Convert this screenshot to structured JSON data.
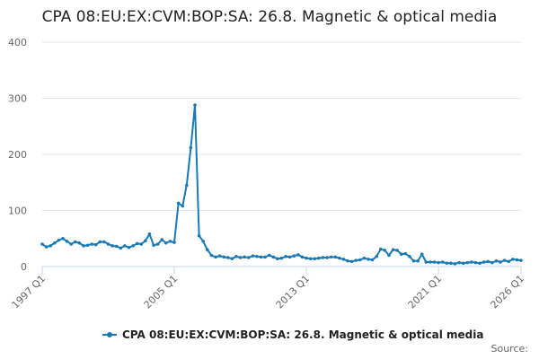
{
  "chart_data": {
    "type": "line",
    "title": "CPA 08:EU:EX:CVM:BOP:SA: 26.8. Magnetic & optical media",
    "categories": [
      "1997 Q1",
      null,
      null,
      null,
      null,
      null,
      null,
      null,
      null,
      null,
      null,
      null,
      null,
      null,
      null,
      null,
      null,
      null,
      null,
      null,
      null,
      null,
      null,
      null,
      null,
      null,
      null,
      null,
      null,
      null,
      null,
      null,
      "2005 Q1",
      null,
      null,
      null,
      null,
      null,
      null,
      null,
      null,
      null,
      null,
      null,
      null,
      null,
      null,
      null,
      null,
      null,
      null,
      null,
      null,
      null,
      null,
      null,
      null,
      null,
      null,
      null,
      null,
      null,
      null,
      null,
      "2013 Q1",
      null,
      null,
      null,
      null,
      null,
      null,
      null,
      null,
      null,
      null,
      null,
      null,
      null,
      null,
      null,
      null,
      null,
      null,
      null,
      null,
      null,
      null,
      null,
      null,
      null,
      null,
      null,
      null,
      null,
      null,
      null,
      "2021 Q1",
      null,
      null,
      null,
      null,
      null,
      null,
      null,
      null,
      null,
      null,
      null,
      null,
      null,
      null,
      null,
      null,
      null,
      null,
      null,
      "2026 Q1"
    ],
    "series": [
      {
        "name": "CPA 08:EU:EX:CVM:BOP:SA: 26.8. Magnetic & optical media",
        "color": "#1a7ab5",
        "values": [
          40,
          35,
          37,
          42,
          47,
          50,
          45,
          40,
          44,
          42,
          37,
          38,
          40,
          39,
          44,
          44,
          40,
          37,
          36,
          33,
          37,
          34,
          37,
          41,
          40,
          46,
          58,
          38,
          40,
          48,
          42,
          45,
          43,
          113,
          108,
          145,
          212,
          288,
          55,
          45,
          30,
          20,
          17,
          19,
          17,
          16,
          14,
          18,
          16,
          17,
          16,
          19,
          18,
          17,
          17,
          20,
          17,
          14,
          15,
          18,
          17,
          19,
          21,
          17,
          15,
          14,
          14,
          15,
          16,
          16,
          17,
          17,
          15,
          13,
          10,
          9,
          11,
          12,
          15,
          13,
          12,
          18,
          31,
          29,
          20,
          30,
          29,
          22,
          23,
          18,
          10,
          10,
          22,
          8,
          8,
          8,
          7,
          8,
          6,
          6,
          5,
          7,
          6,
          7,
          8,
          7,
          6,
          8,
          9,
          7,
          10,
          8,
          11,
          9,
          13,
          12,
          11
        ]
      }
    ],
    "ylim": [
      0,
      400
    ],
    "yticks": [
      0,
      100,
      200,
      300,
      400
    ],
    "grid": true,
    "legend": "bottom",
    "source": "Source:"
  }
}
